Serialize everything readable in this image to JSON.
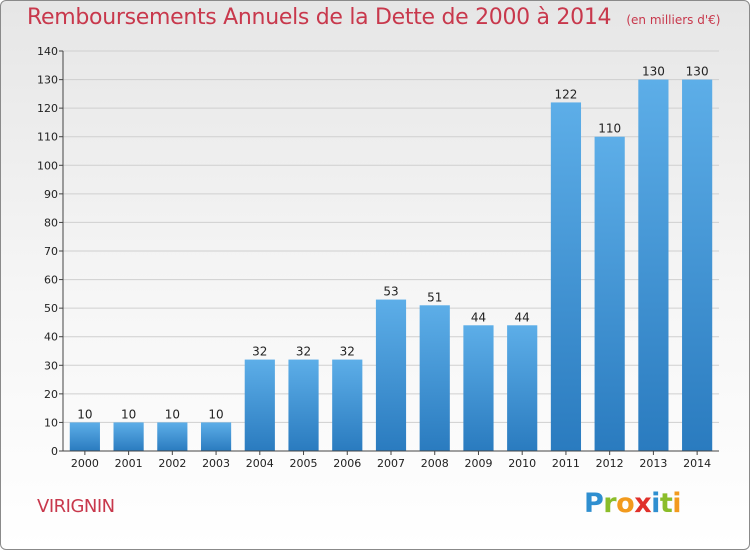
{
  "chart_data": {
    "type": "bar",
    "title": "Remboursements Annuels de la Dette de 2000 à 2014",
    "subtitle": "(en milliers d'€)",
    "xlabel": "",
    "ylabel": "",
    "ylim": [
      0,
      140
    ],
    "yticks": [
      0,
      10,
      20,
      30,
      40,
      50,
      60,
      70,
      80,
      90,
      100,
      110,
      120,
      130,
      140
    ],
    "categories": [
      "2000",
      "2001",
      "2002",
      "2003",
      "2004",
      "2005",
      "2006",
      "2007",
      "2008",
      "2009",
      "2010",
      "2011",
      "2012",
      "2013",
      "2014"
    ],
    "values": [
      10,
      10,
      10,
      10,
      32,
      32,
      32,
      53,
      51,
      44,
      44,
      122,
      110,
      130,
      130
    ],
    "grid": true,
    "colors": {
      "bar_top": "#5daee8",
      "bar_bottom": "#2a7bbf",
      "title": "#c8384c",
      "grid": "#cfcfcf"
    }
  },
  "footer": {
    "commune": "VIRIGNIN",
    "logo_letters": [
      {
        "ch": "P",
        "color": "#2f8fd0"
      },
      {
        "ch": "r",
        "color": "#8bbd2a"
      },
      {
        "ch": "o",
        "color": "#f29a1d"
      },
      {
        "ch": "x",
        "color": "#e0302a"
      },
      {
        "ch": "i",
        "color": "#2f8fd0"
      },
      {
        "ch": "t",
        "color": "#8bbd2a"
      },
      {
        "ch": "i",
        "color": "#f29a1d"
      }
    ]
  }
}
